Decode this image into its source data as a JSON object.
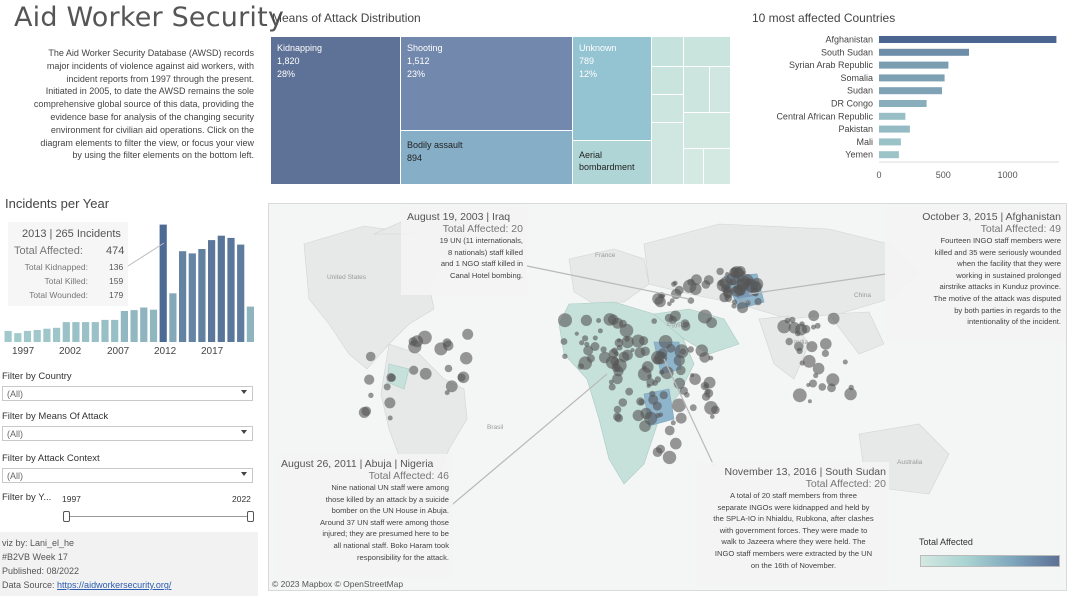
{
  "header": {
    "title": "Aid Worker Security",
    "intro": [
      "The Aid Worker Security Database (AWSD) records",
      "major incidents of violence against aid workers, with",
      "incident reports from 1997 through the present.",
      "Initiated in 2005, to date the AWSD remains the sole",
      "comprehensive global source of this data, providing the",
      "evidence base for analysis of the changing security",
      "environment for civilian aid operations. Click on the",
      "diagram elements to filter the view, or focus your view",
      "by using the filter elements on the bottom left."
    ]
  },
  "incidents_per_year": {
    "title": "Incidents per Year",
    "year_labels": [
      "1997",
      "2002",
      "2007",
      "2012",
      "2017"
    ],
    "tooltip": {
      "headline": "2013 | 265 Incidents",
      "total_label": "Total Affected:",
      "total_value": "474",
      "rows": [
        {
          "label": "Total Kidnapped:",
          "value": "136"
        },
        {
          "label": "Total Killed:",
          "value": "159"
        },
        {
          "label": "Total Wounded:",
          "value": "179"
        }
      ]
    },
    "chart_data": {
      "type": "bar",
      "categories": [
        "1997",
        "1998",
        "1999",
        "2000",
        "2001",
        "2002",
        "2003",
        "2004",
        "2005",
        "2006",
        "2007",
        "2008",
        "2009",
        "2010",
        "2011",
        "2012",
        "2013",
        "2014",
        "2015",
        "2016",
        "2017",
        "2018",
        "2019",
        "2020",
        "2021",
        "2022"
      ],
      "values": [
        25,
        20,
        25,
        27,
        30,
        32,
        45,
        45,
        45,
        45,
        50,
        50,
        70,
        72,
        78,
        73,
        265,
        110,
        205,
        200,
        210,
        230,
        240,
        235,
        220,
        80
      ],
      "highlight": "2013",
      "ylim": [
        0,
        280
      ]
    }
  },
  "filters": [
    {
      "label": "Filter by Country",
      "value": "(All)"
    },
    {
      "label": "Filter by Means Of Attack",
      "value": "(All)"
    },
    {
      "label": "Filter by Attack Context",
      "value": "(All)"
    }
  ],
  "year_filter": {
    "label": "Filter by Y...",
    "start": "1997",
    "end": "2022"
  },
  "footer": {
    "lines": [
      "viz by: Lani_el_he",
      "#B2VB Week 17",
      "Published: 08/2022"
    ],
    "source_label": "Data Source:",
    "source_link": "https://aidworkersecurity.org/"
  },
  "means_of_attack": {
    "title": "Means of Attack Distribution",
    "tiles": [
      {
        "name": "Kidnapping",
        "value": "1,820",
        "pct": "28%",
        "color": "#5e7196"
      },
      {
        "name": "Shooting",
        "value": "1,512",
        "pct": "23%",
        "color": "#7288ad"
      },
      {
        "name": "Bodily assault",
        "value": "894",
        "pct": "",
        "color": "#86aec6"
      },
      {
        "name": "Unknown",
        "value": "789",
        "pct": "12%",
        "color": "#94c3d1"
      },
      {
        "name": "Aerial bombardment",
        "value": "",
        "pct": "",
        "color": "#afd5d6"
      }
    ],
    "chart_data": {
      "type": "treemap",
      "categories": [
        "Kidnapping",
        "Shooting",
        "Bodily assault",
        "Unknown"
      ],
      "values": [
        1820,
        1512,
        894,
        789
      ],
      "percentages": [
        28,
        23,
        null,
        12
      ]
    }
  },
  "top_countries": {
    "title": "10 most affected Countries",
    "axis_ticks": [
      "0",
      "500",
      "1000"
    ],
    "chart_data": {
      "type": "bar",
      "orientation": "horizontal",
      "categories": [
        "Afghanistan",
        "South Sudan",
        "Syrian Arab Republic",
        "Somalia",
        "Sudan",
        "DR Congo",
        "Central African Republic",
        "Pakistan",
        "Mali",
        "Yemen"
      ],
      "values": [
        1380,
        700,
        540,
        510,
        490,
        370,
        205,
        240,
        170,
        155
      ],
      "xlim": [
        0,
        1400
      ]
    }
  },
  "map": {
    "annotations": [
      {
        "headline": "August 19, 2003 | Iraq",
        "total": "Total Affected: 20",
        "body": [
          "19 UN (11 internationals,",
          "8 nationals) staff killed",
          "and 1 NGO staff killed in",
          "Canal Hotel bombing."
        ]
      },
      {
        "headline": "October 3, 2015 | Afghanistan",
        "total": "Total Affected: 49",
        "body": [
          "Fourteen INGO staff members were",
          "killed and 35 were seriously wounded",
          "when the facility that they were",
          "working in sustained prolonged",
          "airstrike attacks in Kunduz province.",
          "The motive of the attack was disputed",
          "by both parties in regards to the",
          "intentionality of the incident."
        ]
      },
      {
        "headline": "August 26, 2011 | Abuja | Nigeria",
        "total": "Total Affected: 46",
        "body": [
          "Nine national UN staff were among",
          "those killed by an attack by a suicide",
          "bomber on the UN House in Abuja.",
          "Around 37 UN staff were among those",
          "injured; they are presumed here to be",
          "all national staff. Boko Haram took",
          "responsibility for the attack."
        ]
      },
      {
        "headline": "November 13, 2016 | South Sudan",
        "total": "Total Affected: 20",
        "body": [
          "A total of 20 staff members from three",
          "separate INGOs were kidnapped and held by",
          "the SPLA-IO in Nhialdu, Rubkona, after clashes",
          "with government forces. They were made to",
          "walk to Jazeera where they were held. The",
          "INGO staff members were extracted by the UN",
          "on the 16th of November."
        ]
      }
    ],
    "place_labels": [
      "United States",
      "Brasil",
      "France",
      "Iran",
      "China",
      "India",
      "Australia",
      "Egypt"
    ],
    "legend_title": "Total Affected",
    "credits": "© 2023 Mapbox  © OpenStreetMap",
    "colors": {
      "low": "#d4e8e2",
      "high": "#5c7095",
      "dots": "#555555"
    }
  }
}
